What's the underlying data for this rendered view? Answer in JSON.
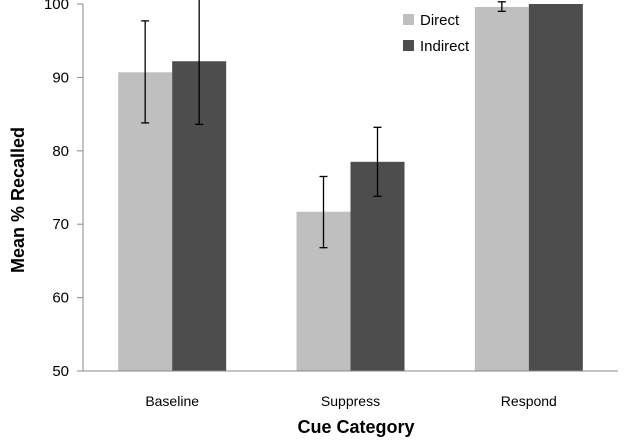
{
  "chart_data": {
    "type": "bar",
    "title": "",
    "xlabel": "Cue Category",
    "ylabel": "Mean % Recalled",
    "categories": [
      "Baseline",
      "Suppress",
      "Respond"
    ],
    "series": [
      {
        "name": "Direct",
        "color": "#bfbfbf",
        "values": [
          90.7,
          71.7,
          99.6
        ],
        "error": [
          [
            83.8,
            97.7
          ],
          [
            66.8,
            76.5
          ],
          [
            99.0,
            100.3
          ]
        ]
      },
      {
        "name": "Indirect",
        "color": "#4d4d4d",
        "values": [
          92.2,
          78.5,
          100.0
        ],
        "error": [
          [
            83.6,
            100.9
          ],
          [
            73.8,
            83.2
          ],
          null
        ]
      }
    ],
    "ylim": [
      50,
      100
    ],
    "yticks": [
      50,
      60,
      70,
      80,
      90,
      100
    ],
    "grid": false,
    "legend": "top-right"
  }
}
